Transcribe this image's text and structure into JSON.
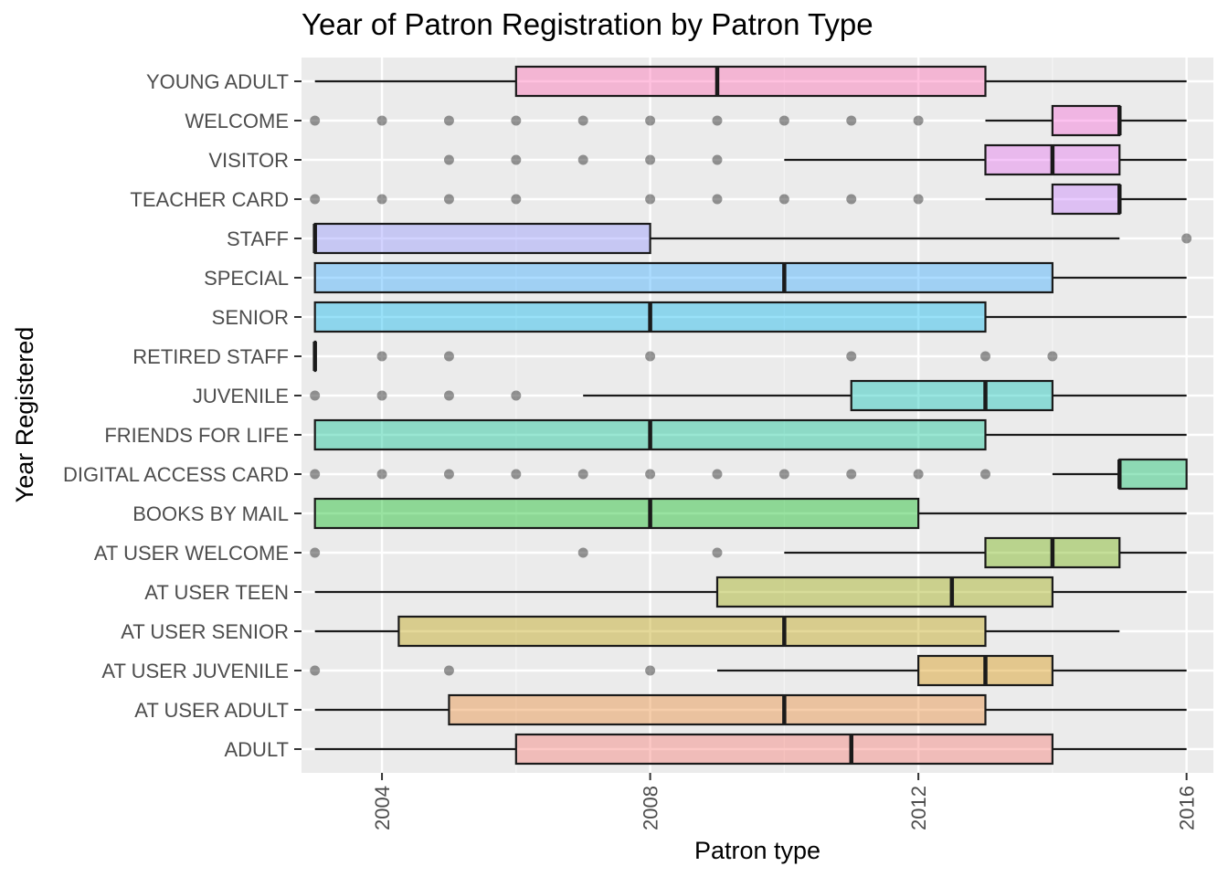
{
  "chart_data": {
    "type": "boxplot",
    "orientation": "horizontal",
    "title": "Year of Patron Registration by Patron Type",
    "xlabel": "Patron type",
    "ylabel": "Year Registered",
    "xlim": [
      2002.8,
      2016.4
    ],
    "x_ticks": [
      2004,
      2008,
      2012,
      2016
    ],
    "grid": true,
    "legend": "none",
    "categories": [
      "ADULT",
      "AT USER ADULT",
      "AT USER JUVENILE",
      "AT USER SENIOR",
      "AT USER TEEN",
      "AT USER WELCOME",
      "BOOKS BY MAIL",
      "DIGITAL ACCESS CARD",
      "FRIENDS FOR LIFE",
      "JUVENILE",
      "RETIRED STAFF",
      "SENIOR",
      "SPECIAL",
      "STAFF",
      "TEACHER CARD",
      "VISITOR",
      "WELCOME",
      "YOUNG ADULT"
    ],
    "boxes": [
      {
        "category": "ADULT",
        "whisker_low": 2003,
        "q1": 2006,
        "median": 2011,
        "q3": 2014,
        "whisker_high": 2016,
        "outliers": [],
        "color": "#F8766D"
      },
      {
        "category": "AT USER ADULT",
        "whisker_low": 2003,
        "q1": 2005,
        "median": 2010,
        "q3": 2013,
        "whisker_high": 2016,
        "outliers": [],
        "color": "#E9842C"
      },
      {
        "category": "AT USER JUVENILE",
        "whisker_low": 2009,
        "q1": 2012,
        "median": 2013,
        "q3": 2014,
        "whisker_high": 2016,
        "outliers": [
          2003,
          2005,
          2008
        ],
        "color": "#D69100"
      },
      {
        "category": "AT USER SENIOR",
        "whisker_low": 2003,
        "q1": 2004.25,
        "median": 2010,
        "q3": 2013,
        "whisker_high": 2015,
        "outliers": [],
        "color": "#BC9D00"
      },
      {
        "category": "AT USER TEEN",
        "whisker_low": 2003,
        "q1": 2009,
        "median": 2012.5,
        "q3": 2014,
        "whisker_high": 2016,
        "outliers": [],
        "color": "#9CA700"
      },
      {
        "category": "AT USER WELCOME",
        "whisker_low": 2010,
        "q1": 2013,
        "median": 2014,
        "q3": 2015,
        "whisker_high": 2016,
        "outliers": [
          2003,
          2007,
          2009
        ],
        "color": "#6FB000"
      },
      {
        "category": "BOOKS BY MAIL",
        "whisker_low": 2003,
        "q1": 2003,
        "median": 2008,
        "q3": 2012,
        "whisker_high": 2016,
        "outliers": [],
        "color": "#00B813"
      },
      {
        "category": "DIGITAL ACCESS CARD",
        "whisker_low": 2014,
        "q1": 2015,
        "median": 2015,
        "q3": 2016,
        "whisker_high": 2016,
        "outliers": [
          2003,
          2004,
          2005,
          2006,
          2007,
          2008,
          2009,
          2010,
          2011,
          2012,
          2013
        ],
        "color": "#00BD61"
      },
      {
        "category": "FRIENDS FOR LIFE",
        "whisker_low": 2003,
        "q1": 2003,
        "median": 2008,
        "q3": 2013,
        "whisker_high": 2016,
        "outliers": [],
        "color": "#00C08E"
      },
      {
        "category": "JUVENILE",
        "whisker_low": 2007,
        "q1": 2011,
        "median": 2013,
        "q3": 2014,
        "whisker_high": 2016,
        "outliers": [
          2003,
          2004,
          2005,
          2006
        ],
        "color": "#00C0B4"
      },
      {
        "category": "RETIRED STAFF",
        "whisker_low": 2003,
        "q1": 2003,
        "median": 2003,
        "q3": 2003,
        "whisker_high": 2003,
        "outliers": [
          2004,
          2005,
          2008,
          2011,
          2013,
          2014
        ],
        "color": "#00BDD4"
      },
      {
        "category": "SENIOR",
        "whisker_low": 2003,
        "q1": 2003,
        "median": 2008,
        "q3": 2013,
        "whisker_high": 2016,
        "outliers": [],
        "color": "#00B5EE"
      },
      {
        "category": "SPECIAL",
        "whisker_low": 2003,
        "q1": 2003,
        "median": 2010,
        "q3": 2014,
        "whisker_high": 2016,
        "outliers": [],
        "color": "#2FA7FF"
      },
      {
        "category": "STAFF",
        "whisker_low": 2003,
        "q1": 2003,
        "median": 2003,
        "q3": 2008,
        "whisker_high": 2015,
        "outliers": [
          2016
        ],
        "color": "#8F91FF"
      },
      {
        "category": "TEACHER CARD",
        "whisker_low": 2013,
        "q1": 2014,
        "median": 2015,
        "q3": 2015,
        "whisker_high": 2016,
        "outliers": [
          2003,
          2004,
          2005,
          2006,
          2008,
          2009,
          2010,
          2011,
          2012
        ],
        "color": "#C77CFF"
      },
      {
        "category": "VISITOR",
        "whisker_low": 2010,
        "q1": 2013,
        "median": 2014,
        "q3": 2015,
        "whisker_high": 2016,
        "outliers": [
          2005,
          2006,
          2007,
          2008,
          2009
        ],
        "color": "#E56EF0"
      },
      {
        "category": "WELCOME",
        "whisker_low": 2013,
        "q1": 2014,
        "median": 2015,
        "q3": 2015,
        "whisker_high": 2016,
        "outliers": [
          2003,
          2004,
          2005,
          2006,
          2007,
          2008,
          2009,
          2010,
          2011,
          2012
        ],
        "color": "#F763D6"
      },
      {
        "category": "YOUNG ADULT",
        "whisker_low": 2003,
        "q1": 2006,
        "median": 2009,
        "q3": 2013,
        "whisker_high": 2016,
        "outliers": [],
        "color": "#FF65AE"
      }
    ]
  }
}
